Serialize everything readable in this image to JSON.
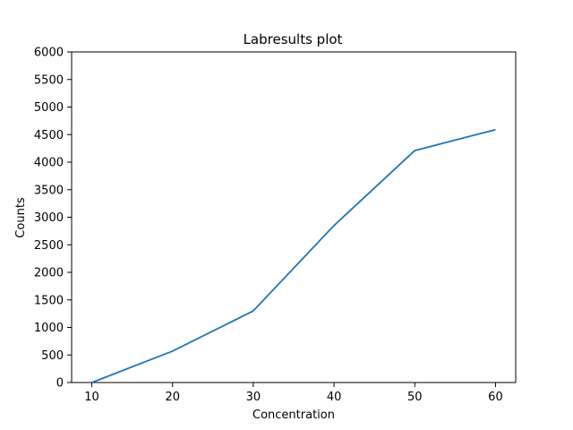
{
  "chart_data": {
    "type": "line",
    "title": "Labresults plot",
    "xlabel": "Concentration",
    "ylabel": "Counts",
    "xlim": [
      7.5,
      62.5
    ],
    "ylim": [
      0,
      6000
    ],
    "xticks": [
      10,
      20,
      30,
      40,
      50,
      60
    ],
    "yticks": [
      0,
      500,
      1000,
      1500,
      2000,
      2500,
      3000,
      3500,
      4000,
      4500,
      5000,
      5500,
      6000
    ],
    "grid": false,
    "series": [
      {
        "x": [
          10,
          20,
          30,
          40,
          50,
          60
        ],
        "y": [
          0,
          570,
          1300,
          2850,
          4210,
          4590
        ],
        "color": "#1f77b4"
      }
    ]
  }
}
